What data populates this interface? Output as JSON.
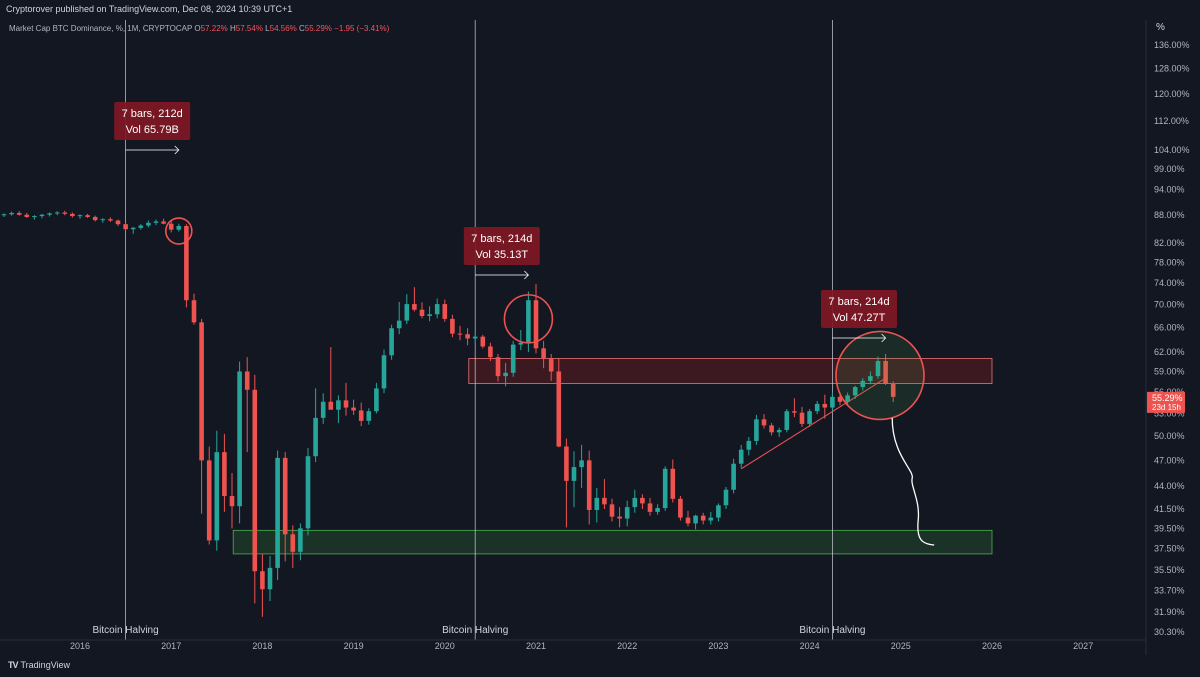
{
  "header": {
    "publisher": "Cryptorover published on TradingView.com, Dec 08, 2024 10:39 UTC+1",
    "symbol": "Market Cap BTC Dominance, %, 1M, CRYPTOCAP",
    "open_label": "O",
    "open": "57.22%",
    "high_label": "H",
    "high": "57.54%",
    "low_label": "L",
    "low": "54.56%",
    "close_label": "C",
    "close": "55.29%",
    "change": "−1.95 (−3.41%)",
    "unit": "%"
  },
  "footer": {
    "brand": "TradingView"
  },
  "colors": {
    "background": "#131722",
    "up": "#26a69a",
    "down": "#ef5350",
    "halving": "#d1d4dc",
    "zone_green": "#2e7d32",
    "zone_red": "#b71c1c"
  },
  "chart_data": {
    "type": "candlestick",
    "title": "Market Cap BTC Dominance, %, 1M, CRYPTOCAP",
    "y_scale": "log",
    "ylim": [
      30.3,
      140
    ],
    "x_ticks": [
      "2016",
      "2017",
      "2018",
      "2019",
      "2020",
      "2021",
      "2022",
      "2023",
      "2024",
      "2025",
      "2026",
      "2027"
    ],
    "y_ticks": [
      "136.00%",
      "128.00%",
      "120.00%",
      "112.00%",
      "104.00%",
      "99.00%",
      "94.00%",
      "88.00%",
      "82.00%",
      "78.00%",
      "74.00%",
      "70.00%",
      "66.00%",
      "62.00%",
      "59.00%",
      "56.00%",
      "53.00%",
      "50.00%",
      "47.00%",
      "44.00%",
      "41.50%",
      "39.50%",
      "37.50%",
      "35.50%",
      "33.70%",
      "31.90%",
      "30.30%"
    ],
    "last_price": {
      "label": "55.29%",
      "countdown": "23d 15h"
    },
    "vlines": [
      {
        "date": "2016-07",
        "label": "Bitcoin Halving"
      },
      {
        "date": "2020-05",
        "label": "Bitcoin Halving"
      },
      {
        "date": "2024-04",
        "label": "Bitcoin Halving"
      }
    ],
    "annotations": [
      {
        "line1": "7 bars, 212d",
        "line2": "Vol 65.79B",
        "from": "2016-07",
        "to": "2017-02"
      },
      {
        "line1": "7 bars, 214d",
        "line2": "Vol 35.13T",
        "from": "2020-05",
        "to": "2020-12"
      },
      {
        "line1": "7 bars, 214d",
        "line2": "Vol 47.27T",
        "from": "2024-04",
        "to": "2024-11"
      }
    ],
    "zones": [
      {
        "type": "support",
        "from": "2017-11",
        "to": "2026-01",
        "low": 37.0,
        "high": 39.3
      },
      {
        "type": "resistance",
        "from": "2020-06",
        "to": "2026-01",
        "low": 57.2,
        "high": 61.0
      }
    ],
    "candles": [
      {
        "t": "2015-01",
        "o": 88,
        "h": 88.6,
        "l": 87.5,
        "c": 88.3
      },
      {
        "t": "2015-02",
        "o": 88.3,
        "h": 88.7,
        "l": 87.8,
        "c": 88.0
      },
      {
        "t": "2015-03",
        "o": 88.0,
        "h": 88.4,
        "l": 87.6,
        "c": 88.2
      },
      {
        "t": "2015-04",
        "o": 88.2,
        "h": 88.8,
        "l": 87.9,
        "c": 88.5
      },
      {
        "t": "2015-05",
        "o": 88.5,
        "h": 88.9,
        "l": 87.9,
        "c": 88.1
      },
      {
        "t": "2015-06",
        "o": 88.1,
        "h": 88.5,
        "l": 87.4,
        "c": 87.6
      },
      {
        "t": "2015-07",
        "o": 87.6,
        "h": 88.0,
        "l": 87.0,
        "c": 87.8
      },
      {
        "t": "2015-08",
        "o": 87.8,
        "h": 88.3,
        "l": 87.3,
        "c": 88.1
      },
      {
        "t": "2015-09",
        "o": 88.1,
        "h": 88.6,
        "l": 87.7,
        "c": 88.4
      },
      {
        "t": "2015-10",
        "o": 88.4,
        "h": 88.9,
        "l": 88.0,
        "c": 88.6
      },
      {
        "t": "2015-11",
        "o": 88.6,
        "h": 89.0,
        "l": 88.0,
        "c": 88.3
      },
      {
        "t": "2015-12",
        "o": 88.3,
        "h": 88.6,
        "l": 87.5,
        "c": 87.8
      },
      {
        "t": "2016-01",
        "o": 87.8,
        "h": 88.2,
        "l": 87.2,
        "c": 88.0
      },
      {
        "t": "2016-02",
        "o": 88.0,
        "h": 88.3,
        "l": 87.4,
        "c": 87.6
      },
      {
        "t": "2016-03",
        "o": 87.6,
        "h": 87.9,
        "l": 86.6,
        "c": 86.9
      },
      {
        "t": "2016-04",
        "o": 86.9,
        "h": 87.3,
        "l": 86.3,
        "c": 87.1
      },
      {
        "t": "2016-05",
        "o": 87.1,
        "h": 87.5,
        "l": 86.5,
        "c": 86.8
      },
      {
        "t": "2016-06",
        "o": 86.8,
        "h": 87.0,
        "l": 85.6,
        "c": 86.0
      },
      {
        "t": "2016-07",
        "o": 86.0,
        "h": 86.4,
        "l": 84.6,
        "c": 84.9
      },
      {
        "t": "2016-08",
        "o": 84.9,
        "h": 85.4,
        "l": 83.9,
        "c": 85.2
      },
      {
        "t": "2016-09",
        "o": 85.2,
        "h": 86.0,
        "l": 84.8,
        "c": 85.7
      },
      {
        "t": "2016-10",
        "o": 85.7,
        "h": 86.8,
        "l": 85.3,
        "c": 86.3
      },
      {
        "t": "2016-11",
        "o": 86.3,
        "h": 87.0,
        "l": 85.8,
        "c": 86.6
      },
      {
        "t": "2016-12",
        "o": 86.6,
        "h": 87.2,
        "l": 86.0,
        "c": 86.1
      },
      {
        "t": "2017-01",
        "o": 86.1,
        "h": 86.7,
        "l": 84.2,
        "c": 84.8
      },
      {
        "t": "2017-02",
        "o": 84.8,
        "h": 86.1,
        "l": 84.4,
        "c": 85.6
      },
      {
        "t": "2017-03",
        "o": 85.6,
        "h": 86.0,
        "l": 69.5,
        "c": 70.8
      },
      {
        "t": "2017-04",
        "o": 70.8,
        "h": 72.0,
        "l": 66.5,
        "c": 66.9
      },
      {
        "t": "2017-05",
        "o": 66.9,
        "h": 67.5,
        "l": 41.0,
        "c": 47.0
      },
      {
        "t": "2017-06",
        "o": 47.0,
        "h": 48.7,
        "l": 37.9,
        "c": 38.3
      },
      {
        "t": "2017-07",
        "o": 38.3,
        "h": 50.7,
        "l": 37.3,
        "c": 48.0
      },
      {
        "t": "2017-08",
        "o": 48.0,
        "h": 50.3,
        "l": 41.2,
        "c": 42.9
      },
      {
        "t": "2017-09",
        "o": 42.9,
        "h": 45.5,
        "l": 39.5,
        "c": 41.8
      },
      {
        "t": "2017-10",
        "o": 41.8,
        "h": 60.5,
        "l": 40.0,
        "c": 59.0
      },
      {
        "t": "2017-11",
        "o": 59.0,
        "h": 61.2,
        "l": 48.0,
        "c": 56.3
      },
      {
        "t": "2017-12",
        "o": 56.3,
        "h": 58.5,
        "l": 32.6,
        "c": 35.4
      },
      {
        "t": "2018-01",
        "o": 35.4,
        "h": 37.0,
        "l": 31.5,
        "c": 33.8
      },
      {
        "t": "2018-02",
        "o": 33.8,
        "h": 36.8,
        "l": 32.8,
        "c": 35.7
      },
      {
        "t": "2018-03",
        "o": 35.7,
        "h": 48.2,
        "l": 34.6,
        "c": 47.3
      },
      {
        "t": "2018-04",
        "o": 47.3,
        "h": 48.0,
        "l": 36.3,
        "c": 38.9
      },
      {
        "t": "2018-05",
        "o": 38.9,
        "h": 39.8,
        "l": 35.7,
        "c": 37.2
      },
      {
        "t": "2018-06",
        "o": 37.2,
        "h": 40.0,
        "l": 36.4,
        "c": 39.5
      },
      {
        "t": "2018-07",
        "o": 39.5,
        "h": 48.5,
        "l": 38.8,
        "c": 47.5
      },
      {
        "t": "2018-08",
        "o": 47.5,
        "h": 56.5,
        "l": 46.8,
        "c": 52.4
      },
      {
        "t": "2018-09",
        "o": 52.4,
        "h": 55.8,
        "l": 51.6,
        "c": 54.6
      },
      {
        "t": "2018-10",
        "o": 54.6,
        "h": 62.8,
        "l": 54.0,
        "c": 53.5
      },
      {
        "t": "2018-11",
        "o": 53.5,
        "h": 55.5,
        "l": 51.7,
        "c": 54.8
      },
      {
        "t": "2018-12",
        "o": 54.8,
        "h": 57.3,
        "l": 52.7,
        "c": 53.8
      },
      {
        "t": "2019-01",
        "o": 53.8,
        "h": 54.9,
        "l": 52.8,
        "c": 53.4
      },
      {
        "t": "2019-02",
        "o": 53.4,
        "h": 54.5,
        "l": 51.3,
        "c": 52.0
      },
      {
        "t": "2019-03",
        "o": 52.0,
        "h": 53.7,
        "l": 51.5,
        "c": 53.3
      },
      {
        "t": "2019-04",
        "o": 53.3,
        "h": 57.3,
        "l": 53.0,
        "c": 56.5
      },
      {
        "t": "2019-05",
        "o": 56.5,
        "h": 62.4,
        "l": 55.8,
        "c": 61.5
      },
      {
        "t": "2019-06",
        "o": 61.5,
        "h": 66.5,
        "l": 60.8,
        "c": 65.9
      },
      {
        "t": "2019-07",
        "o": 65.9,
        "h": 70.5,
        "l": 64.9,
        "c": 67.2
      },
      {
        "t": "2019-08",
        "o": 67.2,
        "h": 71.9,
        "l": 66.6,
        "c": 70.1
      },
      {
        "t": "2019-09",
        "o": 70.1,
        "h": 73.2,
        "l": 68.8,
        "c": 69.1
      },
      {
        "t": "2019-10",
        "o": 69.1,
        "h": 70.4,
        "l": 67.6,
        "c": 68.0
      },
      {
        "t": "2019-11",
        "o": 68.0,
        "h": 69.7,
        "l": 67.1,
        "c": 68.3
      },
      {
        "t": "2019-12",
        "o": 68.3,
        "h": 71.1,
        "l": 67.6,
        "c": 70.1
      },
      {
        "t": "2020-01",
        "o": 70.1,
        "h": 70.9,
        "l": 67.0,
        "c": 67.5
      },
      {
        "t": "2020-02",
        "o": 67.5,
        "h": 68.2,
        "l": 64.4,
        "c": 65.0
      },
      {
        "t": "2020-03",
        "o": 65.0,
        "h": 66.3,
        "l": 63.9,
        "c": 64.9
      },
      {
        "t": "2020-04",
        "o": 64.9,
        "h": 65.9,
        "l": 63.1,
        "c": 64.2
      },
      {
        "t": "2020-05",
        "o": 64.2,
        "h": 65.0,
        "l": 63.4,
        "c": 64.5
      },
      {
        "t": "2020-06",
        "o": 64.5,
        "h": 64.8,
        "l": 62.6,
        "c": 62.9
      },
      {
        "t": "2020-07",
        "o": 62.9,
        "h": 63.5,
        "l": 60.6,
        "c": 61.2
      },
      {
        "t": "2020-08",
        "o": 61.2,
        "h": 61.7,
        "l": 57.5,
        "c": 58.3
      },
      {
        "t": "2020-09",
        "o": 58.3,
        "h": 60.3,
        "l": 56.8,
        "c": 58.8
      },
      {
        "t": "2020-10",
        "o": 58.8,
        "h": 63.8,
        "l": 58.2,
        "c": 63.2
      },
      {
        "t": "2020-11",
        "o": 63.2,
        "h": 65.6,
        "l": 62.3,
        "c": 63.5
      },
      {
        "t": "2020-12",
        "o": 63.5,
        "h": 72.4,
        "l": 62.0,
        "c": 70.8
      },
      {
        "t": "2021-01",
        "o": 70.8,
        "h": 73.8,
        "l": 61.8,
        "c": 62.6
      },
      {
        "t": "2021-02",
        "o": 62.6,
        "h": 63.8,
        "l": 59.5,
        "c": 61.0
      },
      {
        "t": "2021-03",
        "o": 61.0,
        "h": 61.7,
        "l": 57.6,
        "c": 59.0
      },
      {
        "t": "2021-04",
        "o": 59.0,
        "h": 61.0,
        "l": 48.6,
        "c": 48.7
      },
      {
        "t": "2021-05",
        "o": 48.7,
        "h": 49.7,
        "l": 39.6,
        "c": 44.6
      },
      {
        "t": "2021-06",
        "o": 44.6,
        "h": 48.1,
        "l": 41.7,
        "c": 46.2
      },
      {
        "t": "2021-07",
        "o": 46.2,
        "h": 48.9,
        "l": 43.8,
        "c": 47.0
      },
      {
        "t": "2021-08",
        "o": 47.0,
        "h": 48.2,
        "l": 39.9,
        "c": 41.4
      },
      {
        "t": "2021-09",
        "o": 41.4,
        "h": 43.8,
        "l": 40.1,
        "c": 42.7
      },
      {
        "t": "2021-10",
        "o": 42.7,
        "h": 44.8,
        "l": 41.5,
        "c": 42.0
      },
      {
        "t": "2021-11",
        "o": 42.0,
        "h": 42.6,
        "l": 40.2,
        "c": 40.7
      },
      {
        "t": "2021-12",
        "o": 40.7,
        "h": 41.7,
        "l": 39.6,
        "c": 40.5
      },
      {
        "t": "2022-01",
        "o": 40.5,
        "h": 42.4,
        "l": 39.7,
        "c": 41.7
      },
      {
        "t": "2022-02",
        "o": 41.7,
        "h": 43.6,
        "l": 41.1,
        "c": 42.7
      },
      {
        "t": "2022-03",
        "o": 42.7,
        "h": 43.1,
        "l": 41.5,
        "c": 42.1
      },
      {
        "t": "2022-04",
        "o": 42.1,
        "h": 42.7,
        "l": 40.8,
        "c": 41.2
      },
      {
        "t": "2022-05",
        "o": 41.2,
        "h": 42.0,
        "l": 40.9,
        "c": 41.6
      },
      {
        "t": "2022-06",
        "o": 41.6,
        "h": 46.3,
        "l": 41.3,
        "c": 46.0
      },
      {
        "t": "2022-07",
        "o": 46.0,
        "h": 47.1,
        "l": 42.2,
        "c": 42.6
      },
      {
        "t": "2022-08",
        "o": 42.6,
        "h": 42.9,
        "l": 40.3,
        "c": 40.6
      },
      {
        "t": "2022-09",
        "o": 40.6,
        "h": 41.3,
        "l": 39.7,
        "c": 40.0
      },
      {
        "t": "2022-10",
        "o": 40.0,
        "h": 40.9,
        "l": 39.4,
        "c": 40.8
      },
      {
        "t": "2022-11",
        "o": 40.8,
        "h": 41.1,
        "l": 39.9,
        "c": 40.3
      },
      {
        "t": "2022-12",
        "o": 40.3,
        "h": 41.2,
        "l": 39.9,
        "c": 40.6
      },
      {
        "t": "2023-01",
        "o": 40.6,
        "h": 42.1,
        "l": 40.2,
        "c": 41.9
      },
      {
        "t": "2023-02",
        "o": 41.9,
        "h": 43.9,
        "l": 41.5,
        "c": 43.6
      },
      {
        "t": "2023-03",
        "o": 43.6,
        "h": 47.2,
        "l": 43.2,
        "c": 46.6
      },
      {
        "t": "2023-04",
        "o": 46.6,
        "h": 48.9,
        "l": 46.1,
        "c": 48.3
      },
      {
        "t": "2023-05",
        "o": 48.3,
        "h": 49.9,
        "l": 47.6,
        "c": 49.4
      },
      {
        "t": "2023-06",
        "o": 49.4,
        "h": 52.8,
        "l": 48.9,
        "c": 52.2
      },
      {
        "t": "2023-07",
        "o": 52.2,
        "h": 52.9,
        "l": 51.0,
        "c": 51.4
      },
      {
        "t": "2023-08",
        "o": 51.4,
        "h": 51.7,
        "l": 50.1,
        "c": 50.5
      },
      {
        "t": "2023-09",
        "o": 50.5,
        "h": 51.1,
        "l": 49.9,
        "c": 50.8
      },
      {
        "t": "2023-10",
        "o": 50.8,
        "h": 53.6,
        "l": 50.5,
        "c": 53.3
      },
      {
        "t": "2023-11",
        "o": 53.3,
        "h": 55.1,
        "l": 52.5,
        "c": 53.1
      },
      {
        "t": "2023-12",
        "o": 53.1,
        "h": 53.9,
        "l": 51.2,
        "c": 51.6
      },
      {
        "t": "2024-01",
        "o": 51.6,
        "h": 53.6,
        "l": 51.2,
        "c": 53.3
      },
      {
        "t": "2024-02",
        "o": 53.3,
        "h": 54.7,
        "l": 52.9,
        "c": 54.3
      },
      {
        "t": "2024-03",
        "o": 54.3,
        "h": 55.6,
        "l": 52.3,
        "c": 53.8
      },
      {
        "t": "2024-04",
        "o": 53.8,
        "h": 55.9,
        "l": 53.4,
        "c": 55.3
      },
      {
        "t": "2024-05",
        "o": 55.3,
        "h": 55.8,
        "l": 54.1,
        "c": 54.6
      },
      {
        "t": "2024-06",
        "o": 54.6,
        "h": 55.9,
        "l": 54.2,
        "c": 55.5
      },
      {
        "t": "2024-07",
        "o": 55.5,
        "h": 56.9,
        "l": 55.0,
        "c": 56.7
      },
      {
        "t": "2024-08",
        "o": 56.7,
        "h": 58.0,
        "l": 56.2,
        "c": 57.6
      },
      {
        "t": "2024-09",
        "o": 57.6,
        "h": 59.0,
        "l": 57.1,
        "c": 58.3
      },
      {
        "t": "2024-10",
        "o": 58.3,
        "h": 61.3,
        "l": 57.9,
        "c": 60.6
      },
      {
        "t": "2024-11",
        "o": 60.6,
        "h": 61.7,
        "l": 57.0,
        "c": 57.2
      },
      {
        "t": "2024-12",
        "o": 57.22,
        "h": 57.54,
        "l": 54.56,
        "c": 55.29
      }
    ]
  }
}
